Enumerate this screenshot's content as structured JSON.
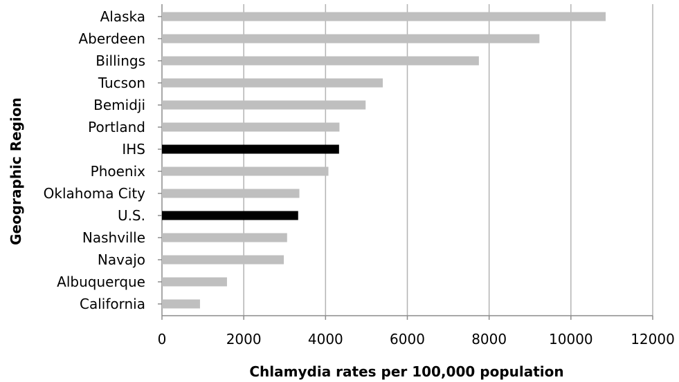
{
  "chart_data": {
    "type": "bar",
    "orientation": "horizontal",
    "categories": [
      "Alaska",
      "Aberdeen",
      "Billings",
      "Tucson",
      "Bemidji",
      "Portland",
      "IHS",
      "Phoenix",
      "Oklahoma City",
      "U.S.",
      "Nashville",
      "Navajo",
      "Albuquerque",
      "California"
    ],
    "values": [
      10850,
      9230,
      7750,
      5400,
      4980,
      4340,
      4330,
      4070,
      3360,
      3330,
      3060,
      2980,
      1590,
      930
    ],
    "highlighted": [
      "IHS",
      "U.S."
    ],
    "xlabel": "Chlamydia rates per 100,000 population",
    "ylabel": "Geographic Region",
    "xlim": [
      0,
      12000
    ],
    "xticks": [
      "0",
      "2000",
      "4000",
      "6000",
      "8000",
      "10000",
      "12000"
    ],
    "grid": "vertical",
    "legend": "none",
    "colors": {
      "bar": "#bfbfbf",
      "highlight": "#000000",
      "grid": "#b3b3b3",
      "axis": "#8c8c8c"
    }
  }
}
